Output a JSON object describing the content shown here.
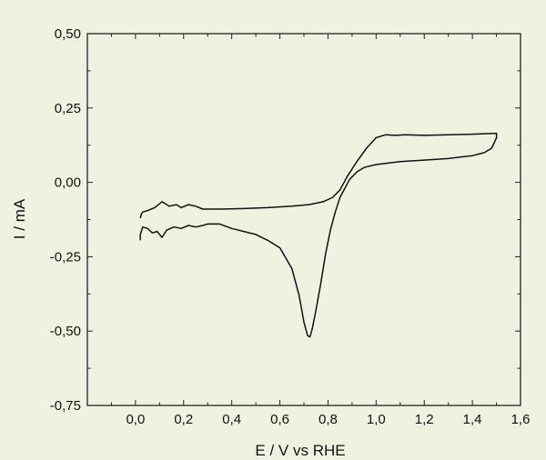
{
  "chart_data": {
    "type": "line",
    "title": "",
    "xlabel": "E / V vs RHE",
    "ylabel": "I / mA",
    "xlim": [
      -0.2,
      1.6
    ],
    "ylim": [
      -0.75,
      0.5
    ],
    "x_ticks": [
      0.0,
      0.2,
      0.4,
      0.6,
      0.8,
      1.0,
      1.2,
      1.4,
      1.6
    ],
    "x_tick_labels": [
      "0,0",
      "0,2",
      "0,4",
      "0,6",
      "0,8",
      "1,0",
      "1,2",
      "1,4",
      "1,6"
    ],
    "y_ticks": [
      0.5,
      0.25,
      0.0,
      -0.25,
      -0.5,
      -0.75
    ],
    "y_tick_labels": [
      "0,50",
      "0,25",
      "0,00",
      "-0,25",
      "-0,50",
      "-0,75"
    ],
    "grid": false,
    "legend": false,
    "colors": {
      "background": "#eef3e1",
      "line": "#111111"
    },
    "series": [
      {
        "x": [
          0.02,
          0.025,
          0.03,
          0.05,
          0.08,
          0.11,
          0.14,
          0.17,
          0.19,
          0.22,
          0.25,
          0.28,
          0.35,
          0.45,
          0.55,
          0.65,
          0.72,
          0.78,
          0.82,
          0.85,
          0.88,
          0.92,
          0.96,
          1.0,
          1.04,
          1.08,
          1.12,
          1.2,
          1.3,
          1.4,
          1.5,
          1.5,
          1.48,
          1.45,
          1.4,
          1.3,
          1.2,
          1.1,
          1.0,
          0.95,
          0.92,
          0.89,
          0.87,
          0.85,
          0.83,
          0.81,
          0.79,
          0.77,
          0.75,
          0.735,
          0.725,
          0.715,
          0.7,
          0.68,
          0.65,
          0.6,
          0.55,
          0.5,
          0.45,
          0.4,
          0.35,
          0.3,
          0.28,
          0.25,
          0.22,
          0.19,
          0.16,
          0.13,
          0.11,
          0.09,
          0.07,
          0.05,
          0.03,
          0.02,
          0.02
        ],
        "y": [
          -0.12,
          -0.105,
          -0.1,
          -0.095,
          -0.085,
          -0.065,
          -0.08,
          -0.075,
          -0.085,
          -0.075,
          -0.08,
          -0.09,
          -0.09,
          -0.088,
          -0.085,
          -0.08,
          -0.075,
          -0.065,
          -0.05,
          -0.025,
          0.02,
          0.07,
          0.115,
          0.15,
          0.16,
          0.158,
          0.16,
          0.158,
          0.16,
          0.162,
          0.165,
          0.15,
          0.115,
          0.1,
          0.09,
          0.08,
          0.075,
          0.07,
          0.06,
          0.05,
          0.035,
          0.01,
          -0.02,
          -0.05,
          -0.1,
          -0.16,
          -0.24,
          -0.34,
          -0.43,
          -0.49,
          -0.52,
          -0.515,
          -0.47,
          -0.38,
          -0.29,
          -0.22,
          -0.195,
          -0.175,
          -0.165,
          -0.155,
          -0.14,
          -0.14,
          -0.145,
          -0.15,
          -0.145,
          -0.155,
          -0.15,
          -0.16,
          -0.185,
          -0.165,
          -0.17,
          -0.155,
          -0.15,
          -0.175,
          -0.195
        ]
      }
    ]
  }
}
